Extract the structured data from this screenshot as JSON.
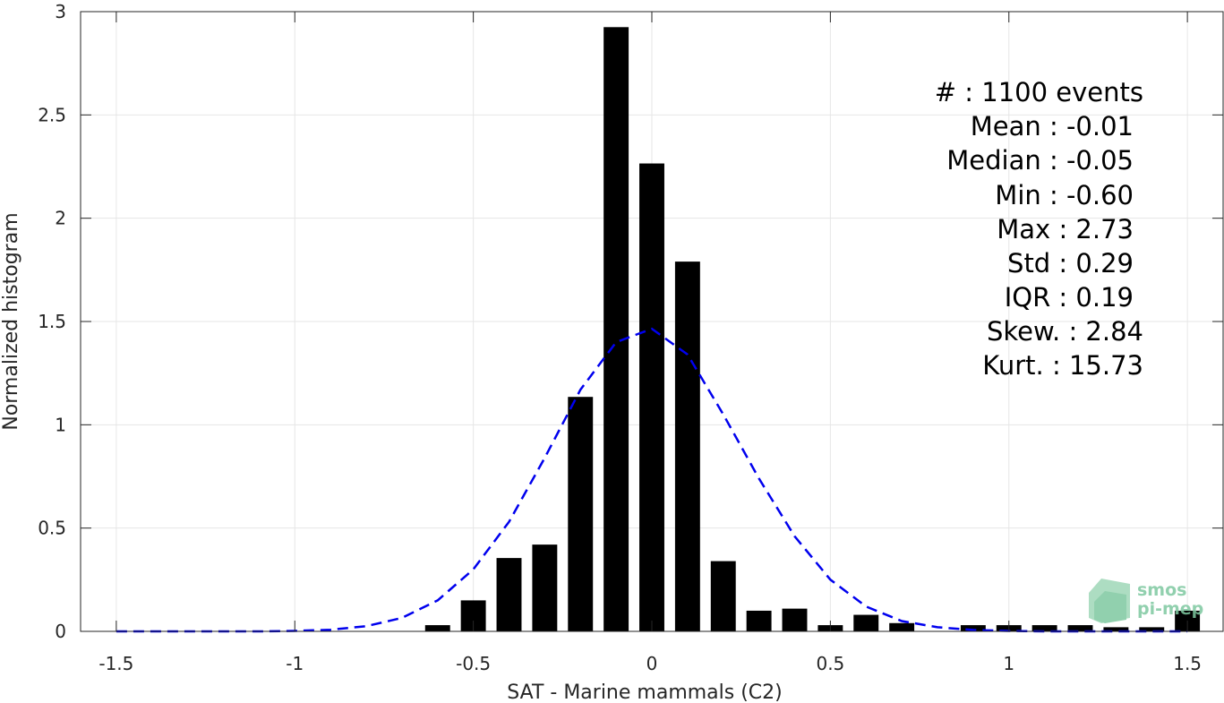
{
  "chart_data": {
    "type": "bar",
    "xlabel": "SAT - Marine mammals (C2)",
    "ylabel": "Normalized histogram",
    "xlim": [
      -1.6,
      1.6
    ],
    "ylim": [
      0,
      3
    ],
    "x_ticks": [
      -1.5,
      -1,
      -0.5,
      0,
      0.5,
      1,
      1.5
    ],
    "x_tick_labels": [
      "-1.5",
      "-1",
      "-0.5",
      "0",
      "0.5",
      "1",
      "1.5"
    ],
    "y_ticks": [
      0,
      0.5,
      1,
      1.5,
      2,
      2.5,
      3
    ],
    "y_tick_labels": [
      "0",
      "0.5",
      "1",
      "1.5",
      "2",
      "2.5",
      "3"
    ],
    "grid": true,
    "bar_width": 0.07,
    "bars": {
      "x": [
        -0.6,
        -0.5,
        -0.4,
        -0.3,
        -0.2,
        -0.1,
        0.0,
        0.1,
        0.2,
        0.3,
        0.4,
        0.5,
        0.6,
        0.7,
        0.9,
        1.0,
        1.1,
        1.2,
        1.3,
        1.4,
        1.5
      ],
      "values": [
        0.03,
        0.15,
        0.355,
        0.42,
        1.135,
        2.925,
        2.265,
        1.79,
        0.34,
        0.1,
        0.11,
        0.03,
        0.08,
        0.04,
        0.03,
        0.03,
        0.03,
        0.03,
        0.02,
        0.02,
        0.1
      ],
      "color": "#000000"
    },
    "fit_curve": {
      "style": "dashed",
      "color": "#0000ee",
      "x": [
        -1.5,
        -1.4,
        -1.3,
        -1.2,
        -1.1,
        -1.0,
        -0.9,
        -0.8,
        -0.7,
        -0.6,
        -0.5,
        -0.4,
        -0.3,
        -0.2,
        -0.1,
        0.0,
        0.1,
        0.2,
        0.3,
        0.4,
        0.5,
        0.6,
        0.7,
        0.8,
        0.9,
        1.0,
        1.1,
        1.2,
        1.3,
        1.4,
        1.5
      ],
      "values": [
        0.0,
        0.0,
        0.0,
        0.0,
        0.0,
        0.002,
        0.008,
        0.025,
        0.065,
        0.15,
        0.3,
        0.53,
        0.84,
        1.17,
        1.4,
        1.465,
        1.34,
        1.05,
        0.74,
        0.46,
        0.25,
        0.12,
        0.05,
        0.02,
        0.007,
        0.002,
        0.0,
        0.0,
        0.0,
        0.0,
        0.0
      ]
    },
    "stats": [
      "#  : 1100 events",
      "Mean : -0.01",
      "Median : -0.05",
      "Min : -0.60",
      "Max : 2.73",
      "Std : 0.29",
      "IQR : 0.19",
      "Skew. : 2.84",
      "Kurt. : 15.73"
    ]
  },
  "logo": {
    "line1": "smos",
    "line2": "pi-mep"
  }
}
